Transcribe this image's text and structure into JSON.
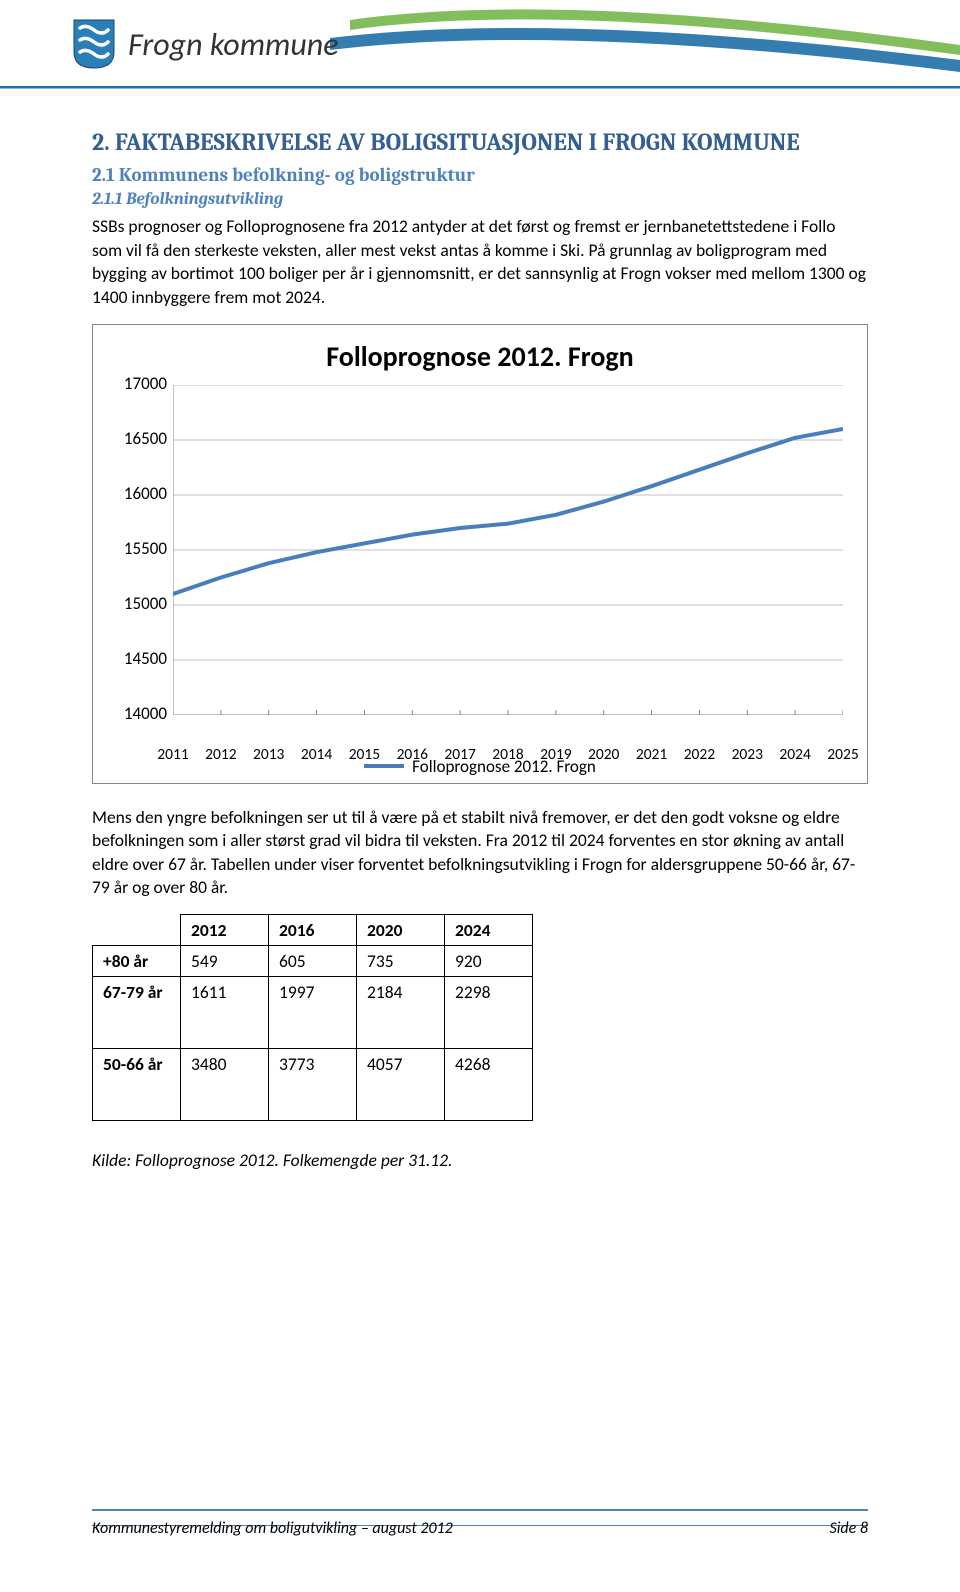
{
  "header": {
    "org_name": "Frogn kommune"
  },
  "section": {
    "title": "2. FAKTABESKRIVELSE AV BOLIGSITUASJONEN I FROGN KOMMUNE",
    "sub_title": "2.1 Kommunens befolkning- og boligstruktur",
    "subsub_title": "2.1.1 Befolkningsutvikling",
    "para1": "SSBs prognoser og Folloprognosene fra 2012 antyder at det først og fremst er jernbanetettstedene i Follo som vil få den sterkeste veksten, aller mest vekst antas å komme i Ski. På grunnlag av boligprogram med bygging av bortimot 100 boliger per år i gjennomsnitt, er det sannsynlig at Frogn vokser med mellom 1300 og 1400 innbyggere frem mot 2024.",
    "para2": "Mens den yngre befolkningen ser ut til å være på et stabilt nivå fremover, er det den godt voksne og eldre befolkningen som i aller størst grad vil bidra til veksten. Fra 2012 til 2024 forventes en stor økning av antall eldre over 67 år. Tabellen under viser forventet befolkningsutvikling i Frogn for aldersgruppene 50-66 år, 67-79 år og over 80 år."
  },
  "chart": {
    "type": "line",
    "title": "Folloprognose 2012. Frogn",
    "legend_label": "Folloprognose 2012. Frogn",
    "ylim": [
      14000,
      17000
    ],
    "ytick_step": 500,
    "yticks": [
      14000,
      14500,
      15000,
      15500,
      16000,
      16500,
      17000
    ],
    "xlabels": [
      "2011",
      "2012",
      "2013",
      "2014",
      "2015",
      "2016",
      "2017",
      "2018",
      "2019",
      "2020",
      "2021",
      "2022",
      "2023",
      "2024",
      "2025"
    ],
    "values": [
      15100,
      15250,
      15380,
      15480,
      15560,
      15640,
      15700,
      15740,
      15820,
      15940,
      16080,
      16230,
      16380,
      16520,
      16600
    ],
    "line_color": "#4a7ebb",
    "line_width": 4,
    "grid_color": "#c0c0c0",
    "axis_color": "#868686",
    "background_color": "#ffffff",
    "label_fontsize": 17,
    "title_fontsize": 28
  },
  "table": {
    "columns": [
      "",
      "2012",
      "2016",
      "2020",
      "2024"
    ],
    "rows": [
      {
        "label": "+80 år",
        "cells": [
          "549",
          "605",
          "735",
          "920"
        ],
        "tall": false
      },
      {
        "label": "67-79 år",
        "cells": [
          "1611",
          "1997",
          "2184",
          "2298"
        ],
        "tall": true
      },
      {
        "label": "50-66 år",
        "cells": [
          "3480",
          "3773",
          "4057",
          "4268"
        ],
        "tall": true
      }
    ]
  },
  "source_line": "Kilde: Folloprognose 2012. Folkemengde per 31.12.",
  "footer": {
    "left": "Kommunestyremelding om boligutvikling – august 2012",
    "right": "Side 8"
  }
}
